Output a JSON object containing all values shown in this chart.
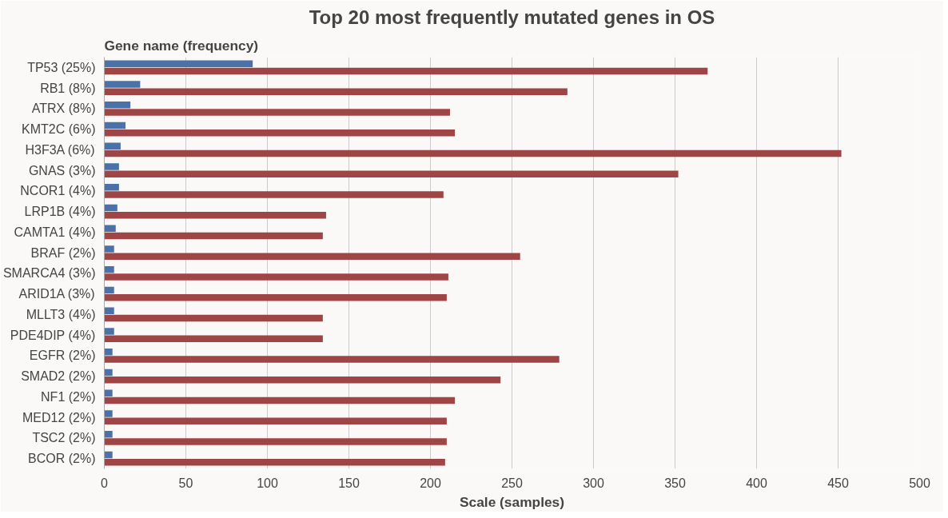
{
  "chart_data": {
    "type": "bar",
    "orientation": "horizontal",
    "title": "Top 20 most frequently mutated genes in OS",
    "ylabel": "Gene name (frequency)",
    "xlabel": "Scale (samples)",
    "categories": [
      "TP53 (25%)",
      "RB1 (8%)",
      "ATRX (8%)",
      "KMT2C (6%)",
      "H3F3A (6%)",
      "GNAS (3%)",
      "NCOR1 (4%)",
      "LRP1B (4%)",
      "CAMTA1 (4%)",
      "BRAF (2%)",
      "SMARCA4 (3%)",
      "ARID1A (3%)",
      "MLLT3 (4%)",
      "PDE4DIP (4%)",
      "EGFR (2%)",
      "SMAD2 (2%)",
      "NF1 (2%)",
      "MED12 (2%)",
      "TSC2 (2%)",
      "BCOR (2%)"
    ],
    "series": [
      {
        "color": "#4a72a8",
        "values": [
          91,
          22,
          16,
          13,
          10,
          9,
          9,
          8,
          7,
          6,
          6,
          6,
          6,
          6,
          5,
          5,
          5,
          5,
          5,
          5
        ]
      },
      {
        "color": "#a04545",
        "values": [
          370,
          284,
          212,
          215,
          452,
          352,
          208,
          136,
          134,
          255,
          211,
          210,
          134,
          134,
          279,
          243,
          215,
          210,
          210,
          209
        ]
      }
    ],
    "xlim": [
      0,
      500
    ],
    "xticks": [
      0,
      50,
      100,
      150,
      200,
      250,
      300,
      350,
      400,
      450,
      500
    ],
    "grid": "x"
  }
}
